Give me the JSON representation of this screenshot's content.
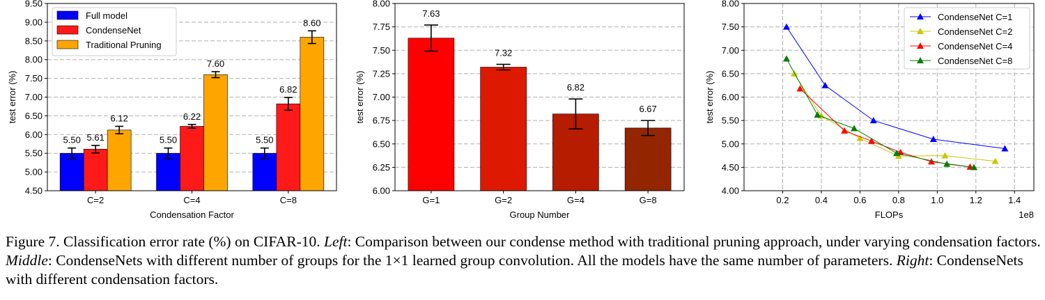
{
  "chart_data": [
    {
      "type": "bar",
      "title": "",
      "xlabel": "Condensation Factor",
      "ylabel": "test error (%)",
      "ylim": [
        4.5,
        9.5
      ],
      "yticks": [
        "4.50",
        "5.00",
        "5.50",
        "6.00",
        "6.50",
        "7.00",
        "7.50",
        "8.00",
        "8.50",
        "9.00",
        "9.50"
      ],
      "grid": true,
      "legend_position": "top-left",
      "categories": [
        "C=2",
        "C=4",
        "C=8"
      ],
      "series": [
        {
          "name": "Full model",
          "color": "#0000ff",
          "values": [
            5.5,
            5.5,
            5.5
          ],
          "errors": [
            0.14,
            0.14,
            0.14
          ],
          "labels": [
            "5.50",
            "5.50",
            "5.50"
          ]
        },
        {
          "name": "CondenseNet",
          "color": "#ff1a1a",
          "values": [
            5.61,
            6.22,
            6.82
          ],
          "errors": [
            0.1,
            0.05,
            0.17
          ],
          "labels": [
            "5.61",
            "6.22",
            "6.82"
          ]
        },
        {
          "name": "Traditional Pruning",
          "color": "#ffa500",
          "values": [
            6.12,
            7.6,
            8.6
          ],
          "errors": [
            0.1,
            0.08,
            0.17
          ],
          "labels": [
            "6.12",
            "7.60",
            "8.60"
          ]
        }
      ]
    },
    {
      "type": "bar",
      "title": "",
      "xlabel": "Group Number",
      "ylabel": "test error (%)",
      "ylim": [
        6.0,
        8.0
      ],
      "yticks": [
        "6.00",
        "6.25",
        "6.50",
        "6.75",
        "7.00",
        "7.25",
        "7.50",
        "7.75",
        "8.00"
      ],
      "grid": true,
      "categories": [
        "G=1",
        "G=2",
        "G=4",
        "G=8"
      ],
      "values": [
        7.63,
        7.32,
        6.82,
        6.67
      ],
      "labels": [
        "7.63",
        "7.32",
        "6.82",
        "6.67"
      ],
      "errors": [
        0.14,
        0.03,
        0.16,
        0.08
      ],
      "colors": [
        "#ff0000",
        "#dd1a00",
        "#b51c00",
        "#932600"
      ]
    },
    {
      "type": "line",
      "title": "",
      "xlabel": "FLOPs",
      "ylabel": "test error (%)",
      "x_offset_label": "1e8",
      "xlim": [
        0.0,
        1.5
      ],
      "ylim": [
        4.0,
        8.0
      ],
      "xticks": [
        0.2,
        0.4,
        0.6,
        0.8,
        1.0,
        1.2,
        1.4
      ],
      "xtick_labels": [
        "0.2",
        "0.4",
        "0.6",
        "0.8",
        "1.0",
        "1.2",
        "1.4"
      ],
      "yticks": [
        "4.00",
        "4.50",
        "5.00",
        "5.50",
        "6.00",
        "6.50",
        "7.00",
        "7.50",
        "8.00"
      ],
      "grid": true,
      "legend_position": "top-right",
      "series": [
        {
          "name": "CondenseNet C=1",
          "color": "#0000ff",
          "x": [
            0.22,
            0.42,
            0.67,
            0.98,
            1.35
          ],
          "y": [
            7.5,
            6.25,
            5.5,
            5.1,
            4.9
          ]
        },
        {
          "name": "CondenseNet C=2",
          "color": "#c8c800",
          "x": [
            0.26,
            0.4,
            0.6,
            0.8,
            1.04,
            1.3
          ],
          "y": [
            6.5,
            5.6,
            5.12,
            4.74,
            4.75,
            4.63
          ]
        },
        {
          "name": "CondenseNet C=4",
          "color": "#ff0000",
          "x": [
            0.29,
            0.52,
            0.66,
            0.81,
            0.97,
            1.17
          ],
          "y": [
            6.18,
            5.28,
            5.06,
            4.82,
            4.62,
            4.51
          ]
        },
        {
          "name": "CondenseNet C=8",
          "color": "#007f00",
          "x": [
            0.22,
            0.38,
            0.57,
            0.79,
            1.05,
            1.19
          ],
          "y": [
            6.82,
            5.62,
            5.33,
            4.8,
            4.57,
            4.5
          ]
        }
      ]
    }
  ],
  "caption": {
    "fig_label": "Figure 7.",
    "text_1": " Classification error rate (%) on CIFAR-10. ",
    "left_label": "Left",
    "text_2": ": Comparison between our condense method with traditional pruning approach, under varying condensation factors. ",
    "middle_label": "Middle",
    "text_3": ": CondenseNets with different number of groups for the 1×1 learned group convolution. All the models have the same number of parameters. ",
    "right_label": "Right",
    "text_4": ": CondenseNets with different condensation factors."
  }
}
